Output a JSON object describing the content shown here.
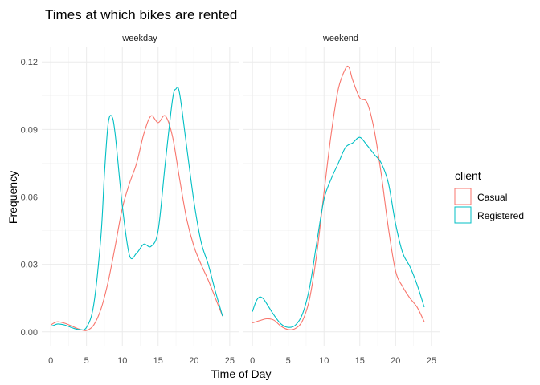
{
  "chart_data": {
    "type": "line",
    "title": "Times at which bikes are rented",
    "xlabel": "Time of Day",
    "ylabel": "Frequency",
    "xlim": [
      0,
      25
    ],
    "ylim": [
      0,
      0.12
    ],
    "x_ticks": [
      "0",
      "5",
      "10",
      "15",
      "20",
      "25"
    ],
    "y_ticks": [
      "0.00",
      "0.03",
      "0.06",
      "0.09",
      "0.12"
    ],
    "grid": true,
    "legend": {
      "title": "client",
      "position": "right",
      "entries": [
        {
          "name": "Casual",
          "color": "#f8766d"
        },
        {
          "name": "Registered",
          "color": "#00bfc4"
        }
      ]
    },
    "panels": [
      {
        "label": "weekday",
        "series": [
          {
            "name": "Casual",
            "x": [
              0,
              0.5,
              1,
              2,
              3,
              4,
              5,
              6,
              7,
              8,
              9,
              10,
              11,
              12,
              13,
              14,
              15,
              16,
              17,
              18,
              19,
              20,
              21,
              22,
              23,
              24
            ],
            "y": [
              0.003,
              0.004,
              0.0045,
              0.0038,
              0.0025,
              0.0012,
              0.0006,
              0.003,
              0.01,
              0.022,
              0.038,
              0.055,
              0.066,
              0.075,
              0.088,
              0.096,
              0.093,
              0.096,
              0.087,
              0.068,
              0.05,
              0.038,
              0.03,
              0.023,
              0.015,
              0.007
            ]
          },
          {
            "name": "Registered",
            "x": [
              0,
              0.5,
              1,
              2,
              3,
              4,
              5,
              6,
              7,
              7.5,
              8,
              8.5,
              9,
              10,
              11,
              12,
              13,
              14,
              15,
              16,
              17,
              17.5,
              18,
              19,
              20,
              21,
              22,
              23,
              24
            ],
            "y": [
              0.0025,
              0.003,
              0.0035,
              0.003,
              0.0018,
              0.001,
              0.002,
              0.012,
              0.042,
              0.07,
              0.092,
              0.096,
              0.088,
              0.056,
              0.034,
              0.035,
              0.039,
              0.038,
              0.045,
              0.075,
              0.103,
              0.108,
              0.106,
              0.082,
              0.058,
              0.04,
              0.03,
              0.018,
              0.007
            ]
          }
        ]
      },
      {
        "label": "weekend",
        "series": [
          {
            "name": "Casual",
            "x": [
              0,
              1,
              2,
              3,
              4,
              5,
              6,
              7,
              8,
              9,
              10,
              11,
              12,
              13,
              13.5,
              14,
              15,
              16,
              17,
              18,
              19,
              20,
              21,
              22,
              23,
              24
            ],
            "y": [
              0.004,
              0.005,
              0.0058,
              0.0052,
              0.0025,
              0.001,
              0.0015,
              0.005,
              0.015,
              0.035,
              0.062,
              0.088,
              0.108,
              0.117,
              0.1175,
              0.112,
              0.104,
              0.102,
              0.09,
              0.07,
              0.046,
              0.027,
              0.02,
              0.015,
              0.011,
              0.0045
            ]
          },
          {
            "name": "Registered",
            "x": [
              0,
              0.5,
              1,
              1.5,
              2,
              3,
              4,
              5,
              6,
              7,
              8,
              9,
              10,
              11,
              12,
              13,
              14,
              15,
              16,
              17,
              18,
              19,
              20,
              21,
              22,
              23,
              24
            ],
            "y": [
              0.009,
              0.0135,
              0.0155,
              0.0148,
              0.0125,
              0.0075,
              0.0035,
              0.002,
              0.003,
              0.008,
              0.02,
              0.04,
              0.059,
              0.068,
              0.075,
              0.082,
              0.084,
              0.0865,
              0.083,
              0.079,
              0.075,
              0.066,
              0.048,
              0.035,
              0.029,
              0.021,
              0.011
            ]
          }
        ]
      }
    ]
  }
}
